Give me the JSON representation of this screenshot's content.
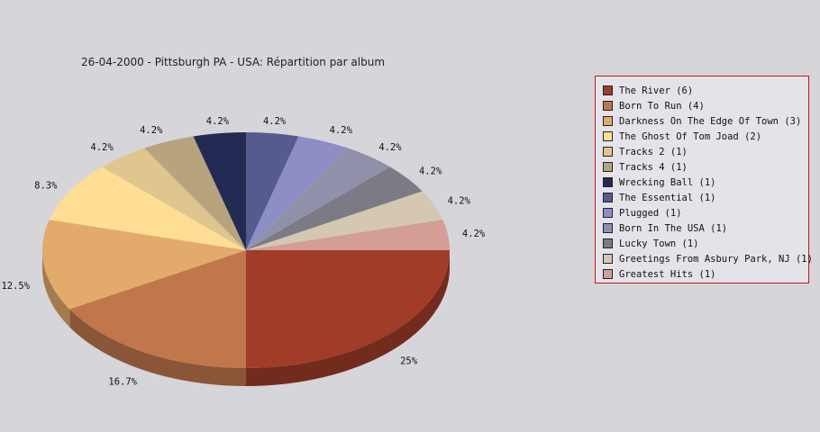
{
  "chart_data": {
    "type": "pie",
    "title": "26-04-2000 - Pittsburgh PA - USA:  Répartition par album",
    "legend_position": "right",
    "slices": [
      {
        "label": "The River (6)",
        "value": 6,
        "pct_label": "25%",
        "color": "#a03c28"
      },
      {
        "label": "Born To Run (4)",
        "value": 4,
        "pct_label": "16.7%",
        "color": "#c1764c"
      },
      {
        "label": "Darkness On The Edge Of Town (3)",
        "value": 3,
        "pct_label": "12.5%",
        "color": "#e2ab6c"
      },
      {
        "label": "The Ghost Of Tom Joad (2)",
        "value": 2,
        "pct_label": "8.3%",
        "color": "#fede94"
      },
      {
        "label": "Tracks 2 (1)",
        "value": 1,
        "pct_label": "4.2%",
        "color": "#dfc68e"
      },
      {
        "label": "Tracks 4 (1)",
        "value": 1,
        "pct_label": "4.2%",
        "color": "#b7a47e"
      },
      {
        "label": "Wrecking Ball (1)",
        "value": 1,
        "pct_label": "4.2%",
        "color": "#232b55"
      },
      {
        "label": "The Essential (1)",
        "value": 1,
        "pct_label": "4.2%",
        "color": "#555b8d"
      },
      {
        "label": "Plugged (1)",
        "value": 1,
        "pct_label": "4.2%",
        "color": "#8d8ec6"
      },
      {
        "label": "Born In The USA (1)",
        "value": 1,
        "pct_label": "4.2%",
        "color": "#9090ab"
      },
      {
        "label": "Lucky Town (1)",
        "value": 1,
        "pct_label": "4.2%",
        "color": "#7c7b85"
      },
      {
        "label": "Greetings From Asbury Park, NJ (1)",
        "value": 1,
        "pct_label": "4.2%",
        "color": "#d4c8b2"
      },
      {
        "label": "Greatest Hits (1)",
        "value": 1,
        "pct_label": "4.2%",
        "color": "#d49d96"
      }
    ]
  }
}
